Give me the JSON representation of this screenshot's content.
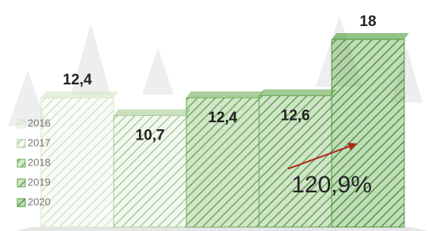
{
  "chart_data": {
    "type": "bar",
    "categories": [
      "2016",
      "2017",
      "2018",
      "2019",
      "2020"
    ],
    "values": [
      12.4,
      10.7,
      12.4,
      12.6,
      18
    ],
    "value_labels": [
      "12,4",
      "10,7",
      "12,4",
      "12,6",
      "18"
    ],
    "colors": [
      "#d3e6c6",
      "#a9cc95",
      "#6fae58",
      "#64a64e",
      "#4f9a3b"
    ],
    "annotation": "120,9%"
  }
}
